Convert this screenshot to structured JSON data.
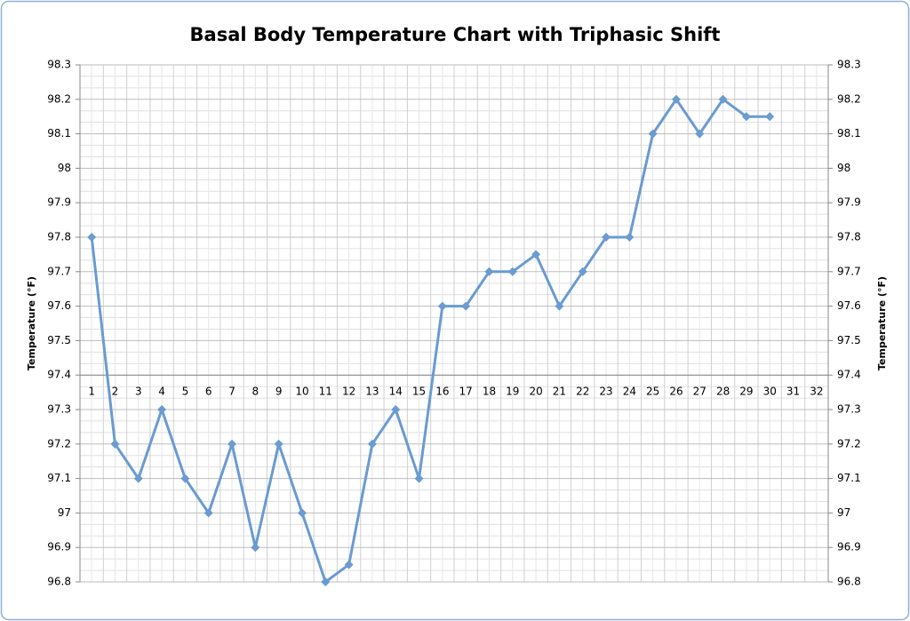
{
  "chart_data": {
    "type": "line",
    "title": "Basal Body Temperature Chart with Triphasic Shift",
    "ylabel": "Temperature (°F)",
    "y2label": "Temperature (°F)",
    "categories": [
      "1",
      "2",
      "3",
      "4",
      "5",
      "6",
      "7",
      "8",
      "9",
      "10",
      "11",
      "12",
      "13",
      "14",
      "15",
      "16",
      "17",
      "18",
      "19",
      "20",
      "21",
      "22",
      "23",
      "24",
      "25",
      "26",
      "27",
      "28",
      "29",
      "30",
      "31",
      "32"
    ],
    "series": [
      {
        "name": "Temperature",
        "color": "#6a9bd1",
        "values": [
          97.8,
          97.2,
          97.1,
          97.3,
          97.1,
          97.0,
          97.2,
          96.9,
          97.2,
          97.0,
          96.8,
          96.85,
          97.2,
          97.3,
          97.1,
          97.6,
          97.6,
          97.7,
          97.7,
          97.75,
          97.6,
          97.7,
          97.8,
          97.8,
          98.1,
          98.2,
          98.1,
          98.2,
          98.15,
          98.15,
          null,
          null
        ]
      }
    ],
    "ylim": [
      96.8,
      98.3
    ],
    "yticks": [
      96.8,
      96.9,
      97,
      97.1,
      97.2,
      97.3,
      97.4,
      97.5,
      97.6,
      97.7,
      97.8,
      97.9,
      98,
      98.1,
      98.2,
      98.3
    ],
    "y2lim": [
      96.8,
      98.3
    ],
    "y2ticks": [
      96.8,
      96.9,
      97,
      97.1,
      97.2,
      97.3,
      97.4,
      97.5,
      97.6,
      97.7,
      97.8,
      97.9,
      98,
      98.1,
      98.2,
      98.3
    ],
    "xaxis_at": 97.4,
    "grid": true
  }
}
